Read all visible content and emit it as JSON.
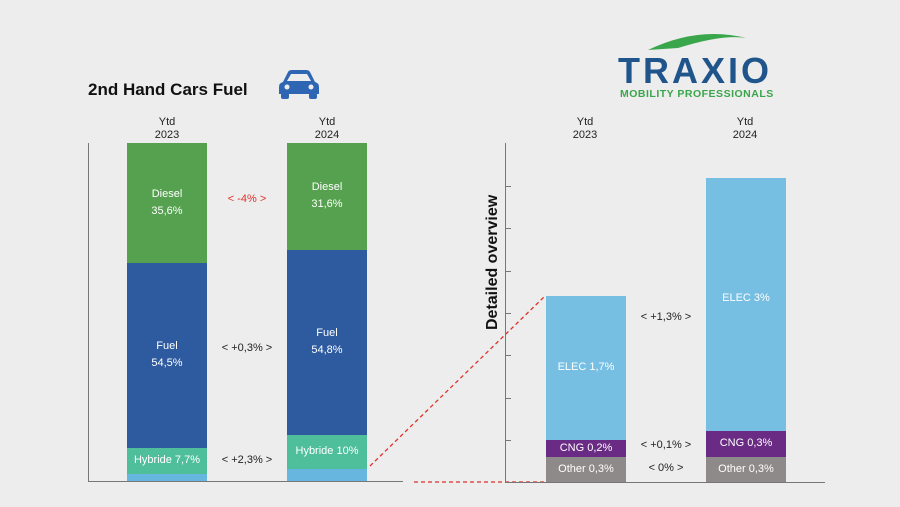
{
  "chart_title": "2nd Hand Cars Fuel",
  "side_label": "Detailed overview",
  "logo": {
    "name": "TRAXIO",
    "tagline": "MOBILITY PROFESSIONALS"
  },
  "colors": {
    "diesel": "#56a150",
    "fuel": "#2e5aa0",
    "hybride": "#4fbf9b",
    "hybride_base": "#67b6df",
    "elec": "#76bfe2",
    "cng": "#6a2b84",
    "other": "#8e8a89",
    "delta_negative": "#e0302a",
    "logo_blue": "#20558c",
    "logo_green": "#3aa64b"
  },
  "chart_data": [
    {
      "type": "bar",
      "stacked": true,
      "title": "2nd Hand Cars Fuel",
      "categories": [
        "Ytd\n2023",
        "Ytd\n2024"
      ],
      "series": [
        {
          "name": "Hybride",
          "values": [
            7.7,
            10.0
          ],
          "labels": [
            "Hybride 7,7%",
            "Hybride 10%"
          ]
        },
        {
          "name": "Fuel",
          "values": [
            54.5,
            54.8
          ],
          "labels": [
            "Fuel\n54,5%",
            "Fuel\n54,8%"
          ]
        },
        {
          "name": "Diesel",
          "values": [
            35.6,
            31.6
          ],
          "labels": [
            "Diesel\n35,6%",
            "Diesel\n31,6%"
          ]
        }
      ],
      "deltas": [
        {
          "series": "Diesel",
          "text": "< -4% >",
          "negative": true
        },
        {
          "series": "Fuel",
          "text": "< +0,3% >",
          "negative": false
        },
        {
          "series": "Hybride",
          "text": "< +2,3% >",
          "negative": false
        }
      ]
    },
    {
      "type": "bar",
      "stacked": true,
      "title": "Detailed overview",
      "categories": [
        "Ytd\n2023",
        "Ytd\n2024"
      ],
      "series": [
        {
          "name": "Other",
          "values": [
            0.3,
            0.3
          ],
          "labels": [
            "Other 0,3%",
            "Other 0,3%"
          ]
        },
        {
          "name": "CNG",
          "values": [
            0.2,
            0.3
          ],
          "labels": [
            "CNG 0,2%",
            "CNG 0,3%"
          ]
        },
        {
          "name": "ELEC",
          "values": [
            1.7,
            3.0
          ],
          "labels": [
            "ELEC 1,7%",
            "ELEC 3%"
          ]
        }
      ],
      "deltas": [
        {
          "series": "ELEC",
          "text": "< +1,3% >",
          "negative": false
        },
        {
          "series": "CNG",
          "text": "< +0,1% >",
          "negative": false
        },
        {
          "series": "Other",
          "text": "< 0% >",
          "negative": false
        }
      ]
    }
  ]
}
